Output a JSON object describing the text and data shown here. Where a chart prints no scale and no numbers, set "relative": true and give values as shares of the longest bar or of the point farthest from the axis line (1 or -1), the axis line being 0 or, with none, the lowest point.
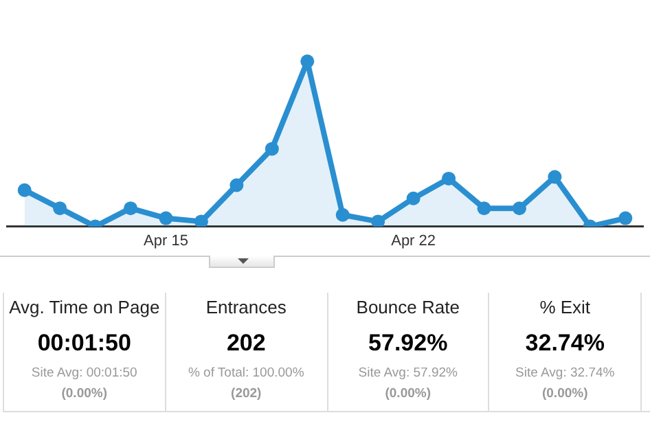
{
  "chart_data": [
    {
      "type": "area",
      "relative": true,
      "categories": [
        null,
        null,
        null,
        null,
        "Apr 15",
        null,
        null,
        null,
        null,
        null,
        null,
        "Apr 22",
        null,
        null,
        null,
        null,
        null,
        null
      ],
      "series": [
        {
          "color": "#2a8fd0",
          "values": [
            0.22,
            0.11,
            0,
            0.11,
            0.05,
            0.03,
            0.25,
            0.47,
            1,
            0.07,
            0.03,
            0.17,
            0.29,
            0.11,
            0.11,
            0.3,
            0,
            0.05
          ]
        }
      ],
      "marker": "circle",
      "legend": false
    },
    {
      "type": "other",
      "annotations": [
        "Avg. Time on Page",
        "00:01:50",
        "Site Avg: 00:01:50",
        "(0.00%)",
        "Entrances",
        "202",
        "% of Total: 100.00%",
        "(202)",
        "Bounce Rate",
        "57.92%",
        "Site Avg: 57.92%",
        "(0.00%)",
        "% Exit",
        "32.74%",
        "Site Avg: 32.74%",
        "(0.00%)"
      ]
    }
  ]
}
